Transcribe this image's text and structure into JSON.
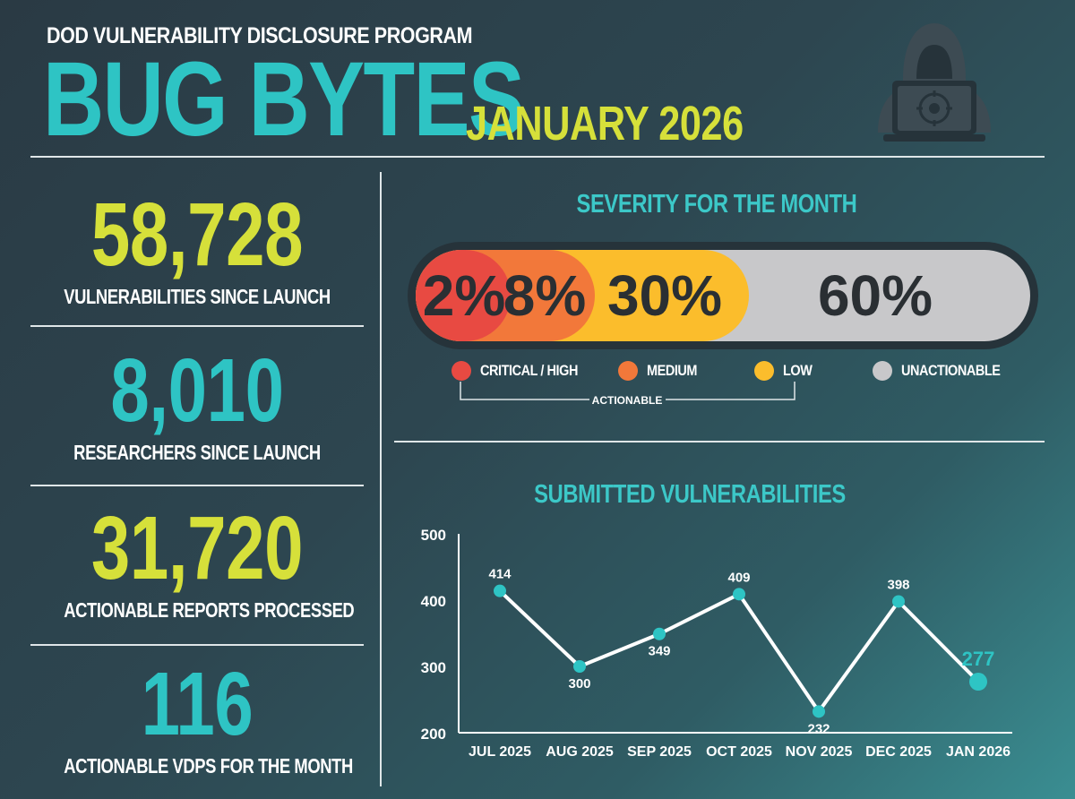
{
  "header": {
    "program": "DOD VULNERABILITY DISCLOSURE PROGRAM",
    "title": "BUG BYTES",
    "date": "JANUARY 2026",
    "icon": "hacker-laptop-icon"
  },
  "stats": [
    {
      "value": "58,728",
      "label": "VULNERABILITIES SINCE LAUNCH",
      "color": "#d6e03a"
    },
    {
      "value": "8,010",
      "label": "RESEARCHERS SINCE LAUNCH",
      "color": "#2ec4c4"
    },
    {
      "value": "31,720",
      "label": "ACTIONABLE REPORTS PROCESSED",
      "color": "#d6e03a"
    },
    {
      "value": "116",
      "label": "ACTIONABLE VDPS FOR THE MONTH",
      "color": "#2ec4c4"
    }
  ],
  "severity": {
    "title": "SEVERITY FOR THE MONTH",
    "actionable_label": "ACTIONABLE",
    "segments": [
      {
        "label": "CRITICAL / HIGH",
        "value": 2,
        "display": "2%",
        "color": "#e84a42"
      },
      {
        "label": "MEDIUM",
        "value": 8,
        "display": "8%",
        "color": "#f2783a"
      },
      {
        "label": "LOW",
        "value": 30,
        "display": "30%",
        "color": "#fbbd2c"
      },
      {
        "label": "UNACTIONABLE",
        "value": 60,
        "display": "60%",
        "color": "#c8c8ca"
      }
    ]
  },
  "submitted": {
    "title": "SUBMITTED VULNERABILITIES"
  },
  "chart_data": {
    "type": "line",
    "categories": [
      "JUL 2025",
      "AUG 2025",
      "SEP 2025",
      "OCT 2025",
      "NOV 2025",
      "DEC 2025",
      "JAN 2026"
    ],
    "values": [
      414,
      300,
      349,
      409,
      232,
      398,
      277
    ],
    "data_labels": [
      "414",
      "300",
      "349",
      "409",
      "232",
      "398",
      "277"
    ],
    "ylim": [
      200,
      500
    ],
    "yticks": [
      "500",
      "400",
      "300",
      "200"
    ],
    "ytick_values": [
      500,
      400,
      300,
      200
    ],
    "line_color": "#ffffff",
    "marker_color": "#2ec4c4",
    "highlight_color": "#2ec4c4",
    "grid": false
  }
}
